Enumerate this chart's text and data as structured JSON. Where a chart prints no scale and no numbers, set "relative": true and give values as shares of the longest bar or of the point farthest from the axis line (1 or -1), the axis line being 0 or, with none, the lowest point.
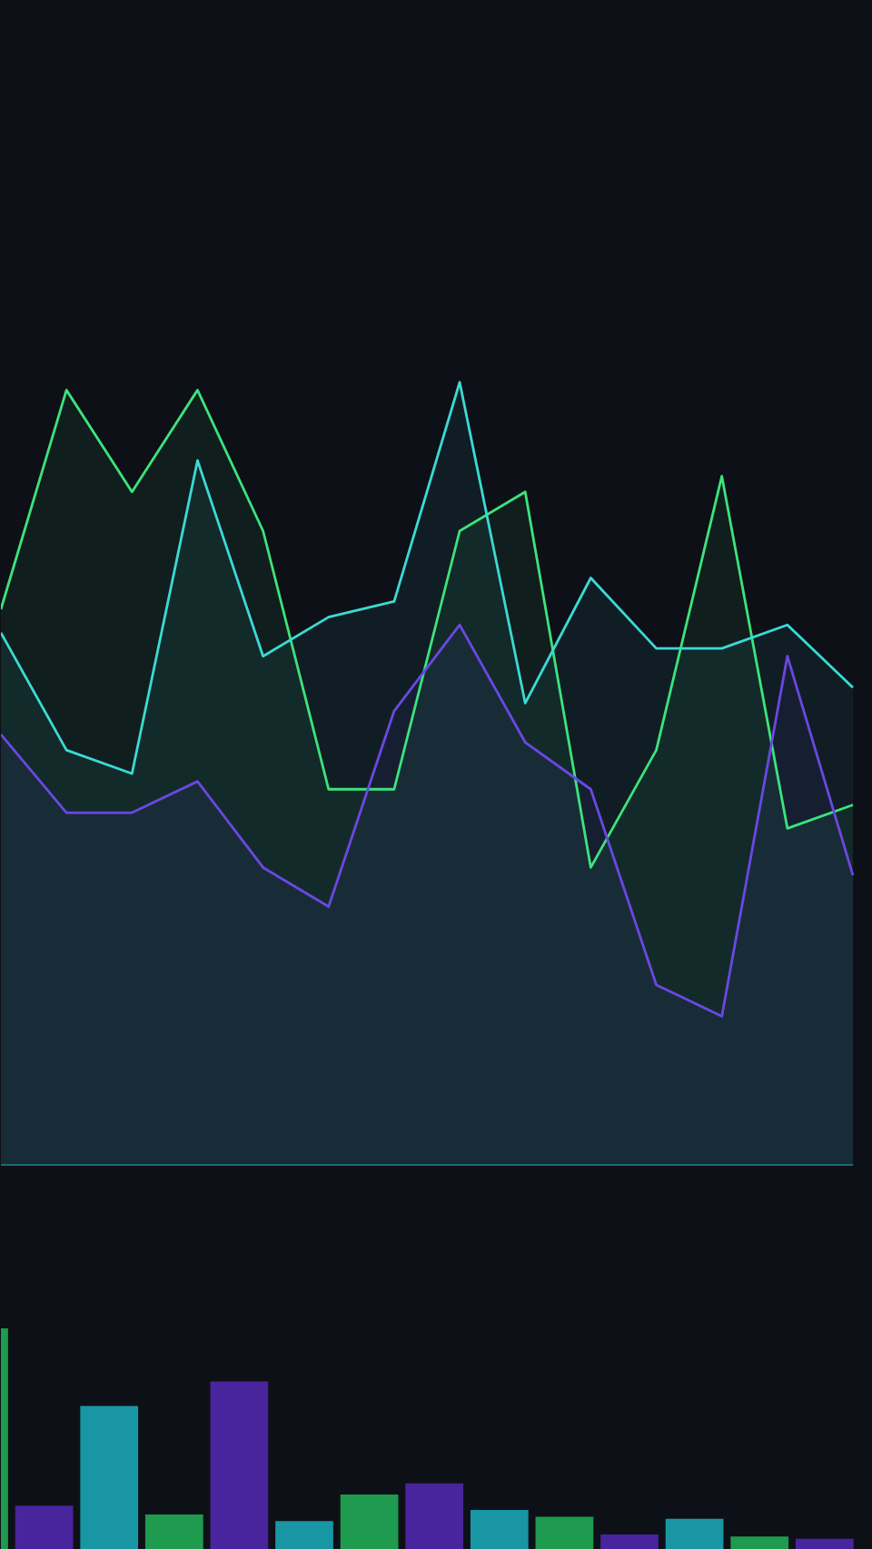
{
  "chart_data": [
    {
      "type": "area",
      "relative": true,
      "categories": [
        null,
        null,
        null,
        null,
        null,
        null,
        null,
        null,
        null,
        null,
        null,
        null,
        null,
        null
      ],
      "series": [
        {
          "color": "#3de37c",
          "values": [
            0.71,
            0.99,
            0.86,
            0.99,
            0.81,
            0.48,
            0.48,
            0.81,
            0.86,
            0.38,
            0.53,
            0.88,
            0.43,
            0.46
          ]
        },
        {
          "color": "#3bdad4",
          "values": [
            0.68,
            0.53,
            0.5,
            0.9,
            0.65,
            0.7,
            0.72,
            1.0,
            0.59,
            0.75,
            0.66,
            0.66,
            0.69,
            0.61
          ]
        },
        {
          "color": "#6a48e2",
          "values": [
            0.55,
            0.45,
            0.45,
            0.49,
            0.38,
            0.33,
            0.58,
            0.69,
            0.54,
            0.48,
            0.23,
            0.19,
            0.65,
            0.37
          ]
        }
      ]
    },
    {
      "type": "bar",
      "relative": true,
      "categories": [
        null,
        null,
        null,
        null,
        null,
        null,
        null,
        null,
        null,
        null,
        null,
        null,
        null,
        null
      ],
      "values": [
        1.0,
        0.2,
        0.65,
        0.16,
        0.76,
        0.13,
        0.25,
        0.3,
        0.18,
        0.15,
        0.07,
        0.14,
        0.06,
        0.05
      ],
      "colors": [
        "#1e9b4e",
        "#48259c",
        "#1996a3",
        "#1e9b4e",
        "#48259c",
        "#1996a3",
        "#1e9b4e",
        "#48259c",
        "#1996a3",
        "#1e9b4e",
        "#48259c",
        "#1996a3",
        "#1e9b4e",
        "#48259c"
      ]
    }
  ]
}
